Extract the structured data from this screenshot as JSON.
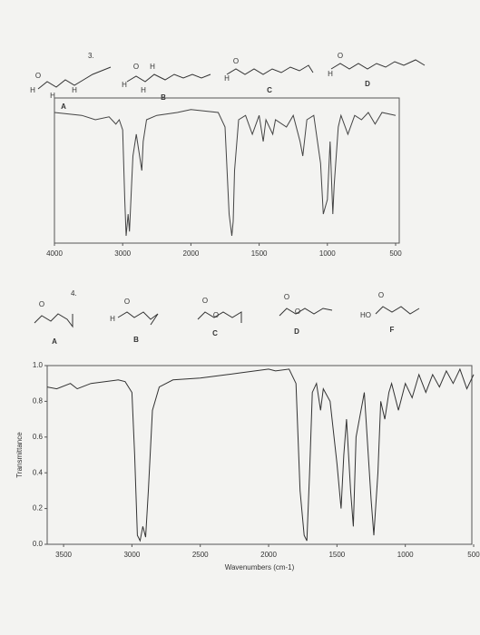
{
  "problems": [
    {
      "number": "3.",
      "compounds": [
        {
          "label": "A",
          "atoms": [
            "O",
            "H",
            "H",
            "H"
          ]
        },
        {
          "label": "B",
          "atoms": [
            "O",
            "H",
            "H",
            "H"
          ]
        },
        {
          "label": "C",
          "atoms": [
            "O",
            "H"
          ]
        },
        {
          "label": "D",
          "atoms": [
            "O",
            "H"
          ]
        }
      ]
    },
    {
      "number": "4.",
      "compounds": [
        {
          "label": "A",
          "atoms": [
            "O"
          ]
        },
        {
          "label": "B",
          "atoms": [
            "O",
            "H"
          ]
        },
        {
          "label": "C",
          "atoms": [
            "O",
            "O"
          ]
        },
        {
          "label": "D",
          "atoms": [
            "O",
            "O"
          ]
        },
        {
          "label": "F",
          "atoms": [
            "O",
            "HO"
          ]
        }
      ]
    }
  ],
  "chart_data": [
    {
      "type": "line",
      "xlim": [
        4000,
        500
      ],
      "ylim": [
        0,
        100
      ],
      "xticks": [
        4000,
        3000,
        2000,
        1500,
        1000,
        500
      ],
      "x": [
        4000,
        3600,
        3400,
        3200,
        3100,
        3050,
        3000,
        2970,
        2950,
        2920,
        2900,
        2870,
        2850,
        2800,
        2720,
        2700,
        2650,
        2500,
        2200,
        2000,
        1800,
        1750,
        1720,
        1700,
        1690,
        1680,
        1650,
        1600,
        1550,
        1500,
        1470,
        1450,
        1400,
        1380,
        1300,
        1250,
        1200,
        1180,
        1150,
        1100,
        1050,
        1030,
        1000,
        980,
        960,
        950,
        920,
        900,
        850,
        800,
        750,
        700,
        650,
        600,
        500
      ],
      "series": [
        {
          "color": "#444444",
          "values": [
            90,
            88,
            85,
            87,
            82,
            85,
            78,
            30,
            5,
            20,
            8,
            40,
            60,
            75,
            50,
            70,
            85,
            88,
            90,
            92,
            90,
            80,
            20,
            5,
            15,
            50,
            85,
            88,
            75,
            88,
            70,
            85,
            75,
            85,
            80,
            88,
            70,
            60,
            85,
            88,
            55,
            20,
            30,
            70,
            20,
            40,
            80,
            88,
            75,
            88,
            85,
            90,
            82,
            90,
            88
          ]
        }
      ]
    },
    {
      "type": "line",
      "xlim": [
        3620,
        480
      ],
      "ylim": [
        0,
        1
      ],
      "xlabel": "Wavenumbers (cm-1)",
      "ylabel": "Transmittance",
      "xticks": [
        3500,
        3000,
        2500,
        2000,
        1500,
        1000,
        500
      ],
      "yticks": [
        {
          "value": 0,
          "label": "0.0"
        },
        0.2,
        0.4,
        0.6,
        0.8,
        {
          "value": 1,
          "label": "1.0"
        }
      ],
      "x": [
        3620,
        3550,
        3450,
        3400,
        3300,
        3100,
        3050,
        3000,
        2980,
        2960,
        2940,
        2920,
        2900,
        2880,
        2850,
        2800,
        2700,
        2500,
        2300,
        2200,
        2100,
        2000,
        1950,
        1850,
        1800,
        1770,
        1740,
        1720,
        1700,
        1680,
        1650,
        1620,
        1600,
        1550,
        1500,
        1470,
        1450,
        1430,
        1400,
        1380,
        1360,
        1300,
        1250,
        1230,
        1200,
        1180,
        1150,
        1120,
        1100,
        1050,
        1000,
        950,
        900,
        850,
        800,
        750,
        700,
        650,
        600,
        550,
        500
      ],
      "series": [
        {
          "color": "#333333",
          "values": [
            0.88,
            0.87,
            0.9,
            0.87,
            0.9,
            0.92,
            0.91,
            0.85,
            0.5,
            0.05,
            0.02,
            0.1,
            0.04,
            0.3,
            0.75,
            0.88,
            0.92,
            0.93,
            0.95,
            0.96,
            0.97,
            0.98,
            0.97,
            0.98,
            0.9,
            0.3,
            0.05,
            0.02,
            0.4,
            0.85,
            0.9,
            0.75,
            0.87,
            0.8,
            0.45,
            0.2,
            0.5,
            0.7,
            0.3,
            0.1,
            0.6,
            0.85,
            0.25,
            0.05,
            0.4,
            0.8,
            0.7,
            0.85,
            0.9,
            0.75,
            0.9,
            0.82,
            0.95,
            0.85,
            0.95,
            0.88,
            0.97,
            0.9,
            0.98,
            0.87,
            0.95
          ]
        }
      ]
    }
  ]
}
